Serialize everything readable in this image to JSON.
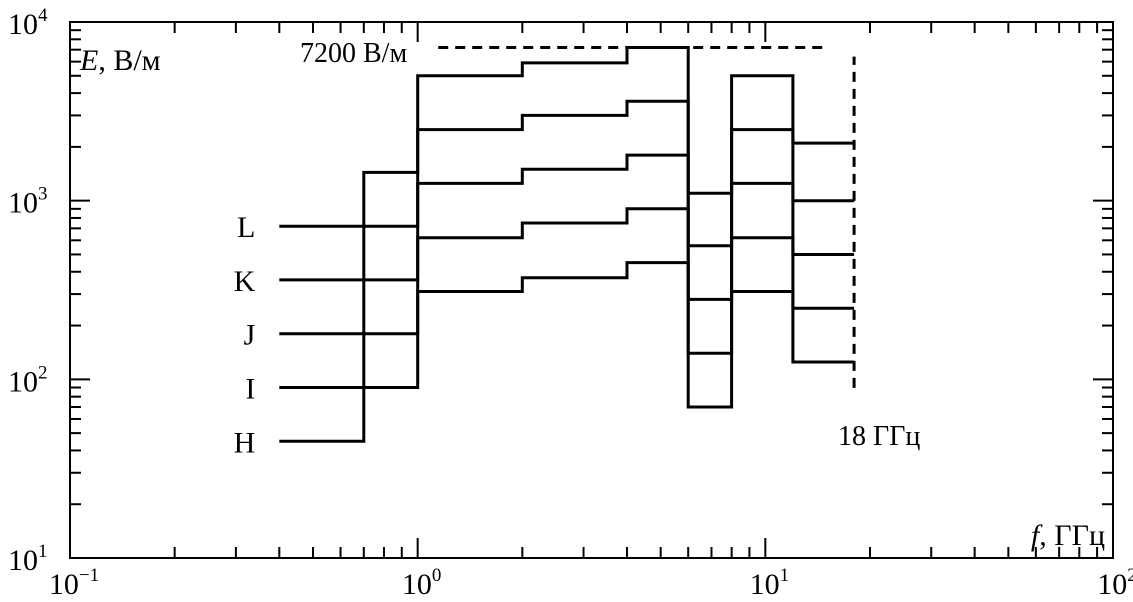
{
  "chart_data": {
    "type": "line",
    "step": "post",
    "xscale": "log",
    "yscale": "log",
    "xlim": [
      0.1,
      100
    ],
    "ylim": [
      10,
      10000
    ],
    "grid": false,
    "x_tick_labels": [
      {
        "value": 0.1,
        "base": "10",
        "exp": "−1"
      },
      {
        "value": 1,
        "base": "10",
        "exp": "0"
      },
      {
        "value": 10,
        "base": "10",
        "exp": "1"
      },
      {
        "value": 100,
        "base": "10",
        "exp": "2"
      }
    ],
    "y_tick_labels": [
      {
        "value": 10,
        "base": "10",
        "exp": "1"
      },
      {
        "value": 100,
        "base": "10",
        "exp": "2"
      },
      {
        "value": 1000,
        "base": "10",
        "exp": "3"
      },
      {
        "value": 10000,
        "base": "10",
        "exp": "4"
      }
    ],
    "ylabel_var": "E",
    "ylabel_unit": ", В/м",
    "xlabel_var": "f",
    "xlabel_unit": ", ГГц",
    "breakpoints": [
      0.4,
      0.7,
      1,
      2,
      4,
      6,
      8,
      12,
      18
    ],
    "series": [
      {
        "name": "L",
        "values": [
          720,
          1440,
          5000,
          5900,
          7200,
          1100,
          5000,
          2100
        ]
      },
      {
        "name": "K",
        "values": [
          360,
          720,
          2500,
          3000,
          3600,
          560,
          2500,
          1000
        ]
      },
      {
        "name": "J",
        "values": [
          180,
          360,
          1250,
          1500,
          1800,
          280,
          1250,
          500
        ]
      },
      {
        "name": "I",
        "values": [
          90,
          180,
          620,
          750,
          900,
          140,
          620,
          250
        ]
      },
      {
        "name": "H",
        "values": [
          45,
          90,
          310,
          370,
          450,
          70,
          310,
          125
        ]
      }
    ],
    "annotations": [
      {
        "id": "max-field",
        "text": "7200 В/м",
        "value": 7200,
        "x_from": 6,
        "x_to": 15
      },
      {
        "id": "max-freq",
        "text": "18 ГГц",
        "value": 18,
        "y_from": 150,
        "y_to": 6400
      }
    ]
  }
}
